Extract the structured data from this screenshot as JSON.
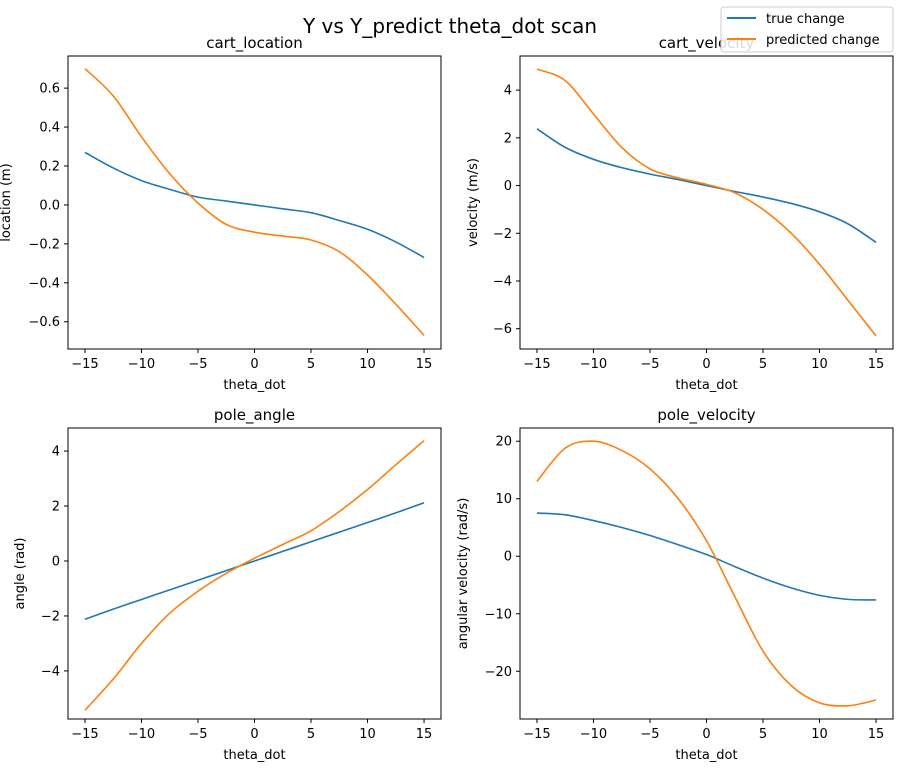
{
  "figure": {
    "title": "Y vs Y_predict theta_dot scan",
    "legend": {
      "placement": "top-right",
      "entries": [
        {
          "label": "true change",
          "color": "#1f77b4"
        },
        {
          "label": "predicted change",
          "color": "#ff7f0e"
        }
      ]
    }
  },
  "chart_data": [
    {
      "type": "line",
      "title": "cart_location",
      "xlabel": "theta_dot",
      "ylabel": "location (m)",
      "xlim": [
        -16.5,
        16.5
      ],
      "ylim": [
        -0.74,
        0.765
      ],
      "xticks": [
        -15,
        -10,
        -5,
        0,
        5,
        10,
        15
      ],
      "yticks": [
        0.6,
        0.4,
        0.2,
        0.0,
        -0.2,
        -0.4,
        -0.6
      ],
      "ytick_labels": [
        "0.6",
        "0.4",
        "0.2",
        "0.0",
        "−0.2",
        "−0.4",
        "−0.6"
      ],
      "x": [
        -15,
        -12.5,
        -10,
        -7.5,
        -5,
        -2.5,
        0,
        2.5,
        5,
        7.5,
        10,
        12.5,
        15
      ],
      "series": [
        {
          "name": "true change",
          "color": "#1f77b4",
          "values": [
            0.27,
            0.19,
            0.125,
            0.08,
            0.04,
            0.02,
            0.0,
            -0.02,
            -0.04,
            -0.08,
            -0.125,
            -0.19,
            -0.27
          ]
        },
        {
          "name": "predicted change",
          "color": "#ff7f0e",
          "values": [
            0.7,
            0.56,
            0.35,
            0.16,
            0.01,
            -0.1,
            -0.14,
            -0.16,
            -0.18,
            -0.24,
            -0.36,
            -0.51,
            -0.67
          ]
        }
      ]
    },
    {
      "type": "line",
      "title": "cart_velocity",
      "xlabel": "theta_dot",
      "ylabel": "velocity (m/s)",
      "xlim": [
        -16.5,
        16.5
      ],
      "ylim": [
        -6.85,
        5.43
      ],
      "xticks": [
        -15,
        -10,
        -5,
        0,
        5,
        10,
        15
      ],
      "yticks": [
        4,
        2,
        0,
        -2,
        -4,
        -6
      ],
      "ytick_labels": [
        "4",
        "2",
        "0",
        "−2",
        "−4",
        "−6"
      ],
      "x": [
        -15,
        -12.5,
        -10,
        -7.5,
        -5,
        -2.5,
        0,
        2.5,
        5,
        7.5,
        10,
        12.5,
        15
      ],
      "series": [
        {
          "name": "true change",
          "color": "#1f77b4",
          "values": [
            2.38,
            1.6,
            1.1,
            0.75,
            0.48,
            0.25,
            0.0,
            -0.25,
            -0.48,
            -0.75,
            -1.1,
            -1.6,
            -2.38
          ]
        },
        {
          "name": "predicted change",
          "color": "#ff7f0e",
          "values": [
            4.88,
            4.4,
            3.0,
            1.6,
            0.7,
            0.32,
            0.05,
            -0.3,
            -1.0,
            -2.0,
            -3.3,
            -4.8,
            -6.3
          ]
        }
      ]
    },
    {
      "type": "line",
      "title": "pole_angle",
      "xlabel": "theta_dot",
      "ylabel": "angle (rad)",
      "xlim": [
        -16.5,
        16.5
      ],
      "ylim": [
        -5.75,
        4.84
      ],
      "xticks": [
        -15,
        -10,
        -5,
        0,
        5,
        10,
        15
      ],
      "yticks": [
        4,
        2,
        0,
        -2,
        -4
      ],
      "ytick_labels": [
        "4",
        "2",
        "0",
        "−2",
        "−4"
      ],
      "x": [
        -15,
        -12.5,
        -10,
        -7.5,
        -5,
        -2.5,
        0,
        2.5,
        5,
        7.5,
        10,
        12.5,
        15
      ],
      "series": [
        {
          "name": "true change",
          "color": "#1f77b4",
          "values": [
            -2.12,
            -1.75,
            -1.4,
            -1.05,
            -0.7,
            -0.35,
            0.0,
            0.35,
            0.7,
            1.05,
            1.4,
            1.75,
            2.12
          ]
        },
        {
          "name": "predicted change",
          "color": "#ff7f0e",
          "values": [
            -5.43,
            -4.3,
            -3.0,
            -1.9,
            -1.1,
            -0.45,
            0.1,
            0.6,
            1.1,
            1.8,
            2.6,
            3.5,
            4.38
          ]
        }
      ]
    },
    {
      "type": "line",
      "title": "pole_velocity",
      "xlabel": "theta_dot",
      "ylabel": "angular velocity (rad/s)",
      "xlim": [
        -16.5,
        16.5
      ],
      "ylim": [
        -28.3,
        22.3
      ],
      "xticks": [
        -15,
        -10,
        -5,
        0,
        5,
        10,
        15
      ],
      "yticks": [
        20,
        10,
        0,
        -10,
        -20
      ],
      "ytick_labels": [
        "20",
        "10",
        "0",
        "−10",
        "−20"
      ],
      "x": [
        -15,
        -12.5,
        -10,
        -7.5,
        -5,
        -2.5,
        0,
        2.5,
        5,
        7.5,
        10,
        12.5,
        15
      ],
      "series": [
        {
          "name": "true change",
          "color": "#1f77b4",
          "values": [
            7.5,
            7.2,
            6.2,
            5.0,
            3.6,
            2.0,
            0.3,
            -1.8,
            -3.8,
            -5.5,
            -6.8,
            -7.5,
            -7.6
          ]
        },
        {
          "name": "predicted change",
          "color": "#ff7f0e",
          "values": [
            13.0,
            18.8,
            20.0,
            18.4,
            15.2,
            10.0,
            2.7,
            -7.0,
            -16.5,
            -22.5,
            -25.5,
            -26.0,
            -25.0
          ]
        }
      ]
    }
  ]
}
